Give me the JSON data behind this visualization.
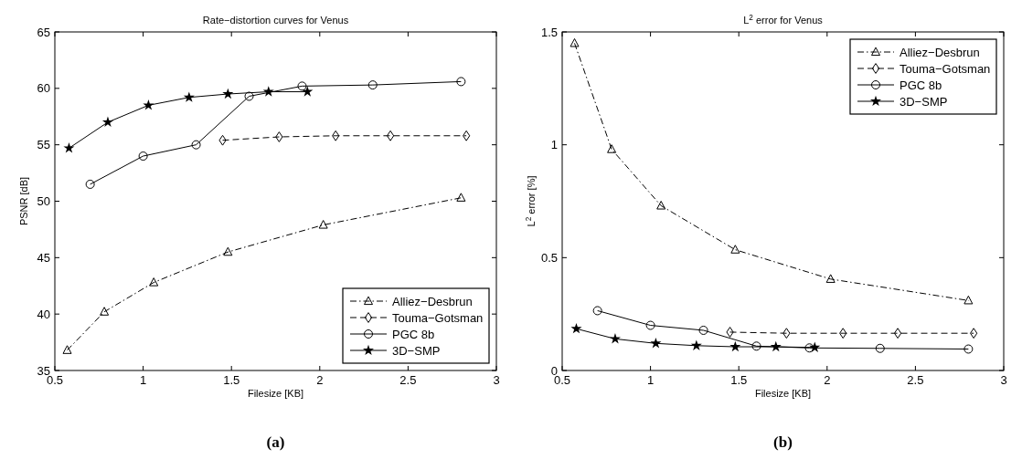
{
  "chart_data": [
    {
      "type": "line",
      "title": "Rate−distortion curves for Venus",
      "xlabel": "Filesize [KB]",
      "ylabel": "PSNR [dB]",
      "xlim": [
        0.5,
        3
      ],
      "xticks": [
        0.5,
        1,
        1.5,
        2,
        2.5,
        3
      ],
      "ylim": [
        35,
        65
      ],
      "yticks": [
        35,
        40,
        45,
        50,
        55,
        60,
        65
      ],
      "legend": "bottom right",
      "grid": false,
      "annotations": [
        "(a)"
      ],
      "series": [
        {
          "name": "Alliez−Desbrun",
          "color": "#000000",
          "marker": "triangle",
          "line_style": "dotted",
          "x": [
            0.57,
            0.78,
            1.06,
            1.48,
            2.02,
            2.8
          ],
          "values": [
            36.8,
            40.2,
            42.8,
            45.5,
            47.9,
            50.3
          ]
        },
        {
          "name": "Touma−Gotsman",
          "color": "#000000",
          "marker": "diamond",
          "line_style": "dashed",
          "x": [
            1.45,
            1.77,
            2.09,
            2.4,
            2.83
          ],
          "values": [
            55.4,
            55.7,
            55.8,
            55.8,
            55.8
          ]
        },
        {
          "name": "PGC 8b",
          "color": "#000000",
          "marker": "circle",
          "line_style": "solid",
          "x": [
            0.7,
            1.0,
            1.3,
            1.6,
            1.9,
            2.3,
            2.8
          ],
          "values": [
            51.5,
            54.0,
            55.0,
            59.3,
            60.2,
            60.3,
            60.6
          ]
        },
        {
          "name": "3D−SMP",
          "color": "#000000",
          "marker": "star",
          "line_style": "solid",
          "x": [
            0.58,
            0.8,
            1.03,
            1.26,
            1.48,
            1.71,
            1.93
          ],
          "values": [
            54.7,
            57.0,
            58.5,
            59.2,
            59.5,
            59.7,
            59.7
          ]
        }
      ]
    },
    {
      "type": "line",
      "title": "L$^{2}$ error for Venus",
      "xlabel": "Filesize [KB]",
      "ylabel": "L$^{2}$ error [%]",
      "xlim": [
        0.5,
        3
      ],
      "xticks": [
        0.5,
        1,
        1.5,
        2,
        2.5,
        3
      ],
      "ylim": [
        0,
        1.5
      ],
      "yticks": [
        0,
        0.5,
        1,
        1.5
      ],
      "legend": "top right",
      "grid": false,
      "annotations": [
        "(b)"
      ],
      "series": [
        {
          "name": "Alliez−Desbrun",
          "color": "#000000",
          "marker": "triangle",
          "line_style": "dotted",
          "x": [
            0.57,
            0.78,
            1.06,
            1.48,
            2.02,
            2.8
          ],
          "values": [
            1.45,
            0.98,
            0.73,
            0.535,
            0.405,
            0.31
          ]
        },
        {
          "name": "Touma−Gotsman",
          "color": "#000000",
          "marker": "diamond",
          "line_style": "dashed",
          "x": [
            1.45,
            1.77,
            2.09,
            2.4,
            2.83
          ],
          "values": [
            0.17,
            0.165,
            0.165,
            0.165,
            0.165
          ]
        },
        {
          "name": "PGC 8b",
          "color": "#000000",
          "marker": "circle",
          "line_style": "solid",
          "x": [
            0.7,
            1.0,
            1.3,
            1.6,
            1.9,
            2.3,
            2.8
          ],
          "values": [
            0.265,
            0.2,
            0.178,
            0.108,
            0.1,
            0.098,
            0.095
          ]
        },
        {
          "name": "3D−SMP",
          "color": "#000000",
          "marker": "star",
          "line_style": "solid",
          "x": [
            0.58,
            0.8,
            1.03,
            1.26,
            1.48,
            1.71,
            1.93
          ],
          "values": [
            0.185,
            0.14,
            0.12,
            0.11,
            0.105,
            0.105,
            0.102
          ]
        }
      ]
    }
  ]
}
